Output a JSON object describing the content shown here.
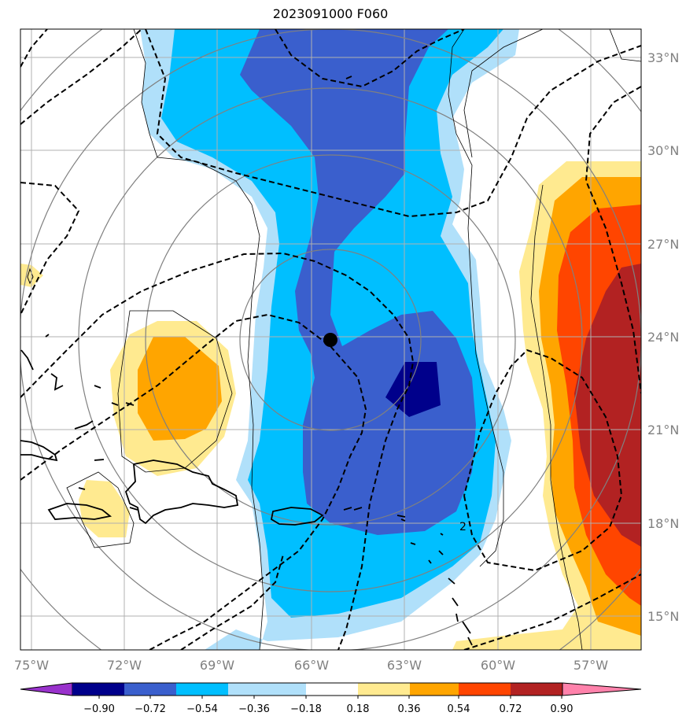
{
  "title": "2023091000 F060",
  "map": {
    "lon_range": [
      -75.3,
      -55.3
    ],
    "lat_range": [
      13.9,
      33.9
    ],
    "lon_labels": [
      "75°W",
      "72°W",
      "69°W",
      "66°W",
      "63°W",
      "60°W",
      "57°W"
    ],
    "lat_labels": [
      "33°N",
      "30°N",
      "27°N",
      "24°N",
      "21°N",
      "18°N",
      "15°N"
    ],
    "storm_center": {
      "lon": -65.4,
      "lat": 23.9
    },
    "contour_label": "2"
  },
  "colorbar": {
    "ticks": [
      "−0.90",
      "−0.72",
      "−0.54",
      "−0.36",
      "−0.18",
      "0.18",
      "0.36",
      "0.54",
      "0.72",
      "0.90"
    ],
    "colors": [
      "#9932cc",
      "#00008b",
      "#3a5fcd",
      "#00bfff",
      "#b0e0fa",
      "#ffffff",
      "#ffea90",
      "#ffa500",
      "#ff4500",
      "#b22222",
      "#ff82ab"
    ]
  },
  "colors": {
    "gray_grid": "#b0b0b0",
    "range_rings": "#808080"
  }
}
